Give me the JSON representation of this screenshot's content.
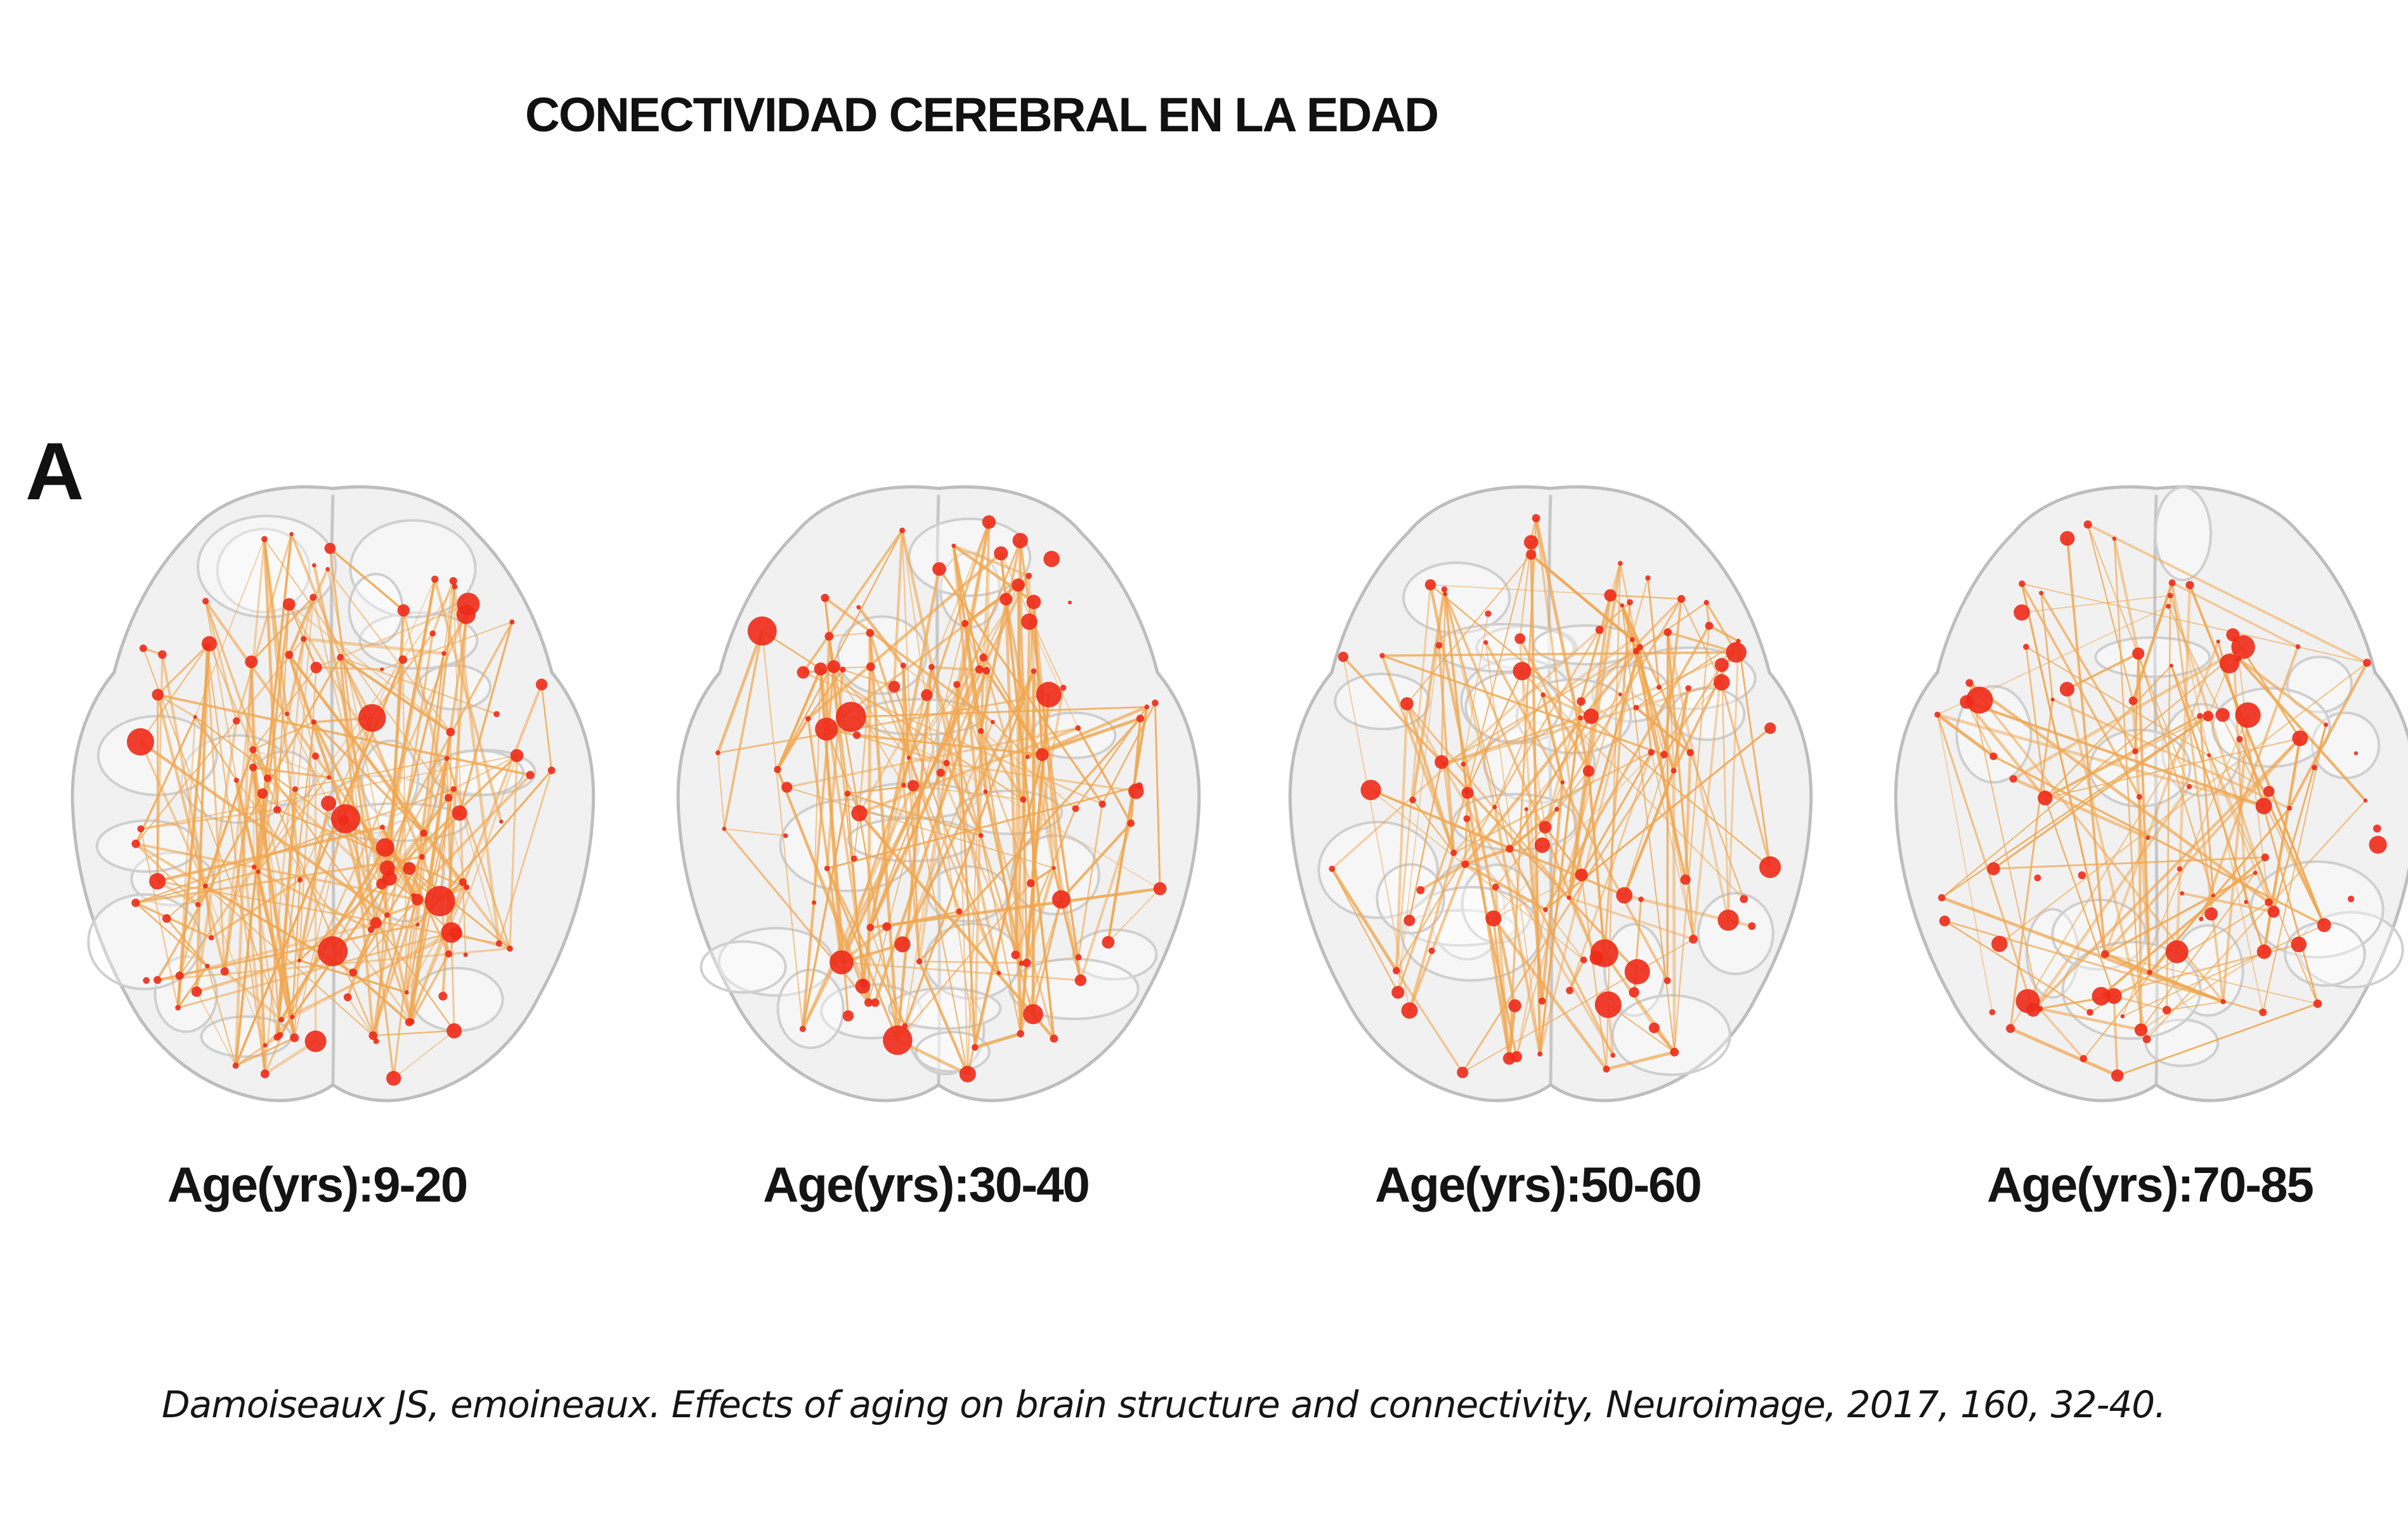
{
  "title": "CONECTIVIDAD CEREBRAL EN LA EDAD",
  "panel_letter": "A",
  "panels": [
    {
      "label": "Age(yrs):9-20",
      "edge_count": 260,
      "node_count": 120,
      "density": "dense"
    },
    {
      "label": "Age(yrs):30-40",
      "edge_count": 210,
      "node_count": 100,
      "density": "dense"
    },
    {
      "label": "Age(yrs):50-60",
      "edge_count": 170,
      "node_count": 100,
      "density": "moderate"
    },
    {
      "label": "Age(yrs):70-85",
      "edge_count": 110,
      "node_count": 90,
      "density": "sparse"
    }
  ],
  "citation": "Damoiseaux JS, emoineaux. Effects of aging on brain structure and connectivity, Neuroimage, 2017, 160, 32-40.",
  "colors": {
    "edge": "#f0a64f",
    "node": "#ee2a18",
    "brain_fill": "#e6e6e6",
    "brain_outline": "#bdbdbd",
    "text": "#111111"
  }
}
